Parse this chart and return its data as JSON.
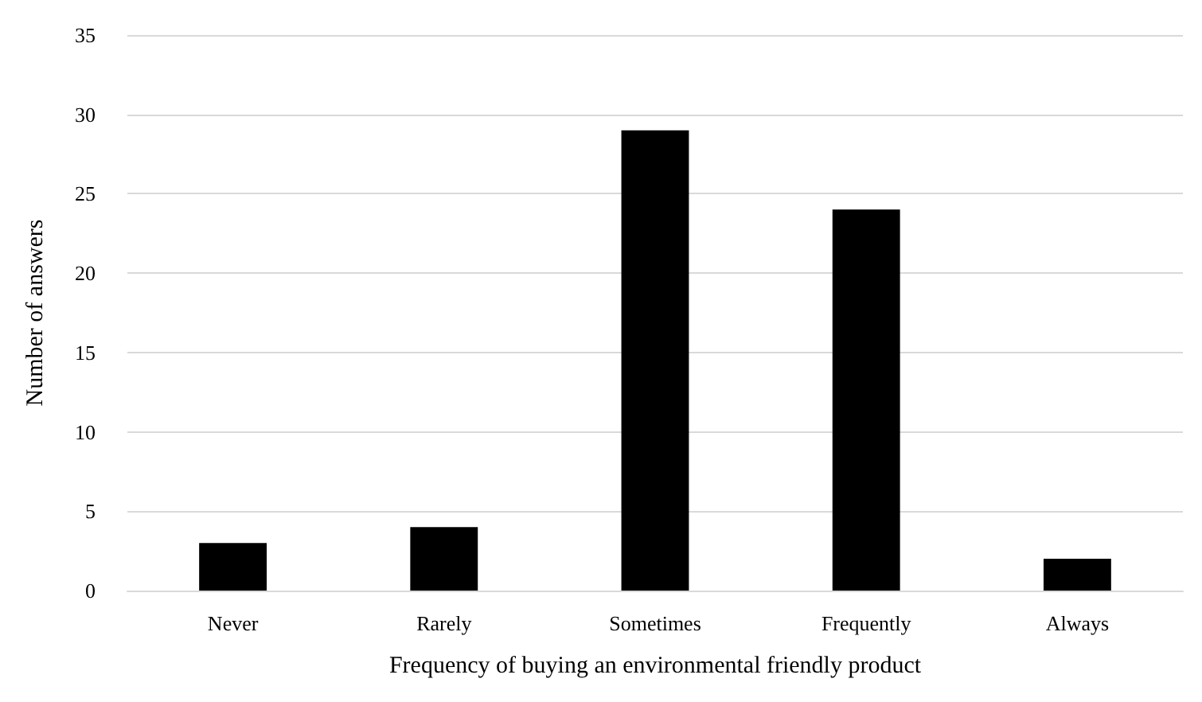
{
  "chart_data": {
    "type": "bar",
    "xlabel": "Frequency of buying an environmental friendly product",
    "ylabel": "Number of answers",
    "categories": [
      "Never",
      "Rarely",
      "Sometimes",
      "Frequently",
      "Always"
    ],
    "values": [
      3,
      4,
      29,
      24,
      2
    ],
    "color": "#000000",
    "ylim": [
      0,
      35
    ],
    "yticks": [
      0,
      5,
      10,
      15,
      20,
      25,
      30,
      35
    ],
    "grid": "y"
  }
}
